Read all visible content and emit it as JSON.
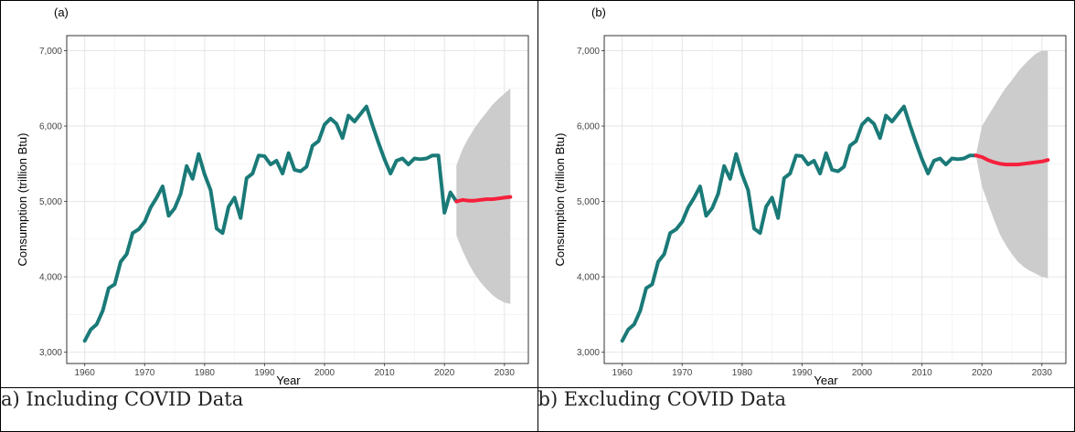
{
  "captions": [
    "a) Including COVID Data",
    "b) Excluding COVID Data"
  ],
  "colors": {
    "history": "#1a7a78",
    "forecast": "#f5203c",
    "band": "#cccccc",
    "grid": "#e6e6e6"
  },
  "chart_data": [
    {
      "type": "line",
      "panel_label": "(a)",
      "xlabel": "Year",
      "ylabel": "Consumption (trillion Btu)",
      "xlim": [
        1957,
        2034
      ],
      "ylim": [
        2850,
        7200
      ],
      "xticks": [
        "1960",
        "1970",
        "1980",
        "1990",
        "2000",
        "2010",
        "2020",
        "2030"
      ],
      "yticks": [
        "3,000",
        "4,000",
        "5,000",
        "6,000",
        "7,000"
      ],
      "grid": true,
      "series": [
        {
          "role": "history",
          "x": [
            1960,
            1961,
            1962,
            1963,
            1964,
            1965,
            1966,
            1967,
            1968,
            1969,
            1970,
            1971,
            1972,
            1973,
            1974,
            1975,
            1976,
            1977,
            1978,
            1979,
            1980,
            1981,
            1982,
            1983,
            1984,
            1985,
            1986,
            1987,
            1988,
            1989,
            1990,
            1991,
            1992,
            1993,
            1994,
            1995,
            1996,
            1997,
            1998,
            1999,
            2000,
            2001,
            2002,
            2003,
            2004,
            2005,
            2006,
            2007,
            2008,
            2009,
            2010,
            2011,
            2012,
            2013,
            2014,
            2015,
            2016,
            2017,
            2018,
            2019,
            2020,
            2021,
            2022
          ],
          "y": [
            3150,
            3300,
            3370,
            3550,
            3850,
            3900,
            4200,
            4300,
            4580,
            4630,
            4730,
            4920,
            5050,
            5200,
            4810,
            4910,
            5100,
            5470,
            5300,
            5630,
            5360,
            5150,
            4640,
            4580,
            4930,
            5050,
            4780,
            5310,
            5370,
            5610,
            5600,
            5490,
            5540,
            5370,
            5640,
            5420,
            5400,
            5460,
            5740,
            5800,
            6020,
            6100,
            6030,
            5840,
            6140,
            6060,
            6160,
            6260,
            6010,
            5780,
            5560,
            5370,
            5540,
            5570,
            5490,
            5570,
            5560,
            5570,
            5610,
            5610,
            4850,
            5120,
            5000
          ]
        },
        {
          "role": "forecast",
          "x": [
            2022,
            2023,
            2024,
            2025,
            2026,
            2027,
            2028,
            2029,
            2030,
            2031
          ],
          "y": [
            5000,
            5020,
            5010,
            5010,
            5020,
            5030,
            5030,
            5040,
            5050,
            5060
          ],
          "lower": [
            4550,
            4350,
            4180,
            4040,
            3930,
            3840,
            3760,
            3700,
            3660,
            3640
          ],
          "upper": [
            5480,
            5690,
            5840,
            5970,
            6080,
            6180,
            6280,
            6360,
            6430,
            6500
          ]
        }
      ]
    },
    {
      "type": "line",
      "panel_label": "(b)",
      "xlabel": "Year",
      "ylabel": "Consumption (trillion Btu)",
      "xlim": [
        1957,
        2034
      ],
      "ylim": [
        2850,
        7200
      ],
      "xticks": [
        "1960",
        "1970",
        "1980",
        "1990",
        "2000",
        "2010",
        "2020",
        "2030"
      ],
      "yticks": [
        "3,000",
        "4,000",
        "5,000",
        "6,000",
        "7,000"
      ],
      "grid": true,
      "series": [
        {
          "role": "history",
          "x": [
            1960,
            1961,
            1962,
            1963,
            1964,
            1965,
            1966,
            1967,
            1968,
            1969,
            1970,
            1971,
            1972,
            1973,
            1974,
            1975,
            1976,
            1977,
            1978,
            1979,
            1980,
            1981,
            1982,
            1983,
            1984,
            1985,
            1986,
            1987,
            1988,
            1989,
            1990,
            1991,
            1992,
            1993,
            1994,
            1995,
            1996,
            1997,
            1998,
            1999,
            2000,
            2001,
            2002,
            2003,
            2004,
            2005,
            2006,
            2007,
            2008,
            2009,
            2010,
            2011,
            2012,
            2013,
            2014,
            2015,
            2016,
            2017,
            2018,
            2019
          ],
          "y": [
            3150,
            3300,
            3370,
            3550,
            3850,
            3900,
            4200,
            4300,
            4580,
            4630,
            4730,
            4920,
            5050,
            5200,
            4810,
            4910,
            5100,
            5470,
            5300,
            5630,
            5360,
            5150,
            4640,
            4580,
            4930,
            5050,
            4780,
            5310,
            5370,
            5610,
            5600,
            5490,
            5540,
            5370,
            5640,
            5420,
            5400,
            5460,
            5740,
            5800,
            6020,
            6100,
            6030,
            5840,
            6140,
            6060,
            6160,
            6260,
            6010,
            5780,
            5560,
            5370,
            5540,
            5570,
            5490,
            5570,
            5560,
            5570,
            5610,
            5610
          ]
        },
        {
          "role": "forecast",
          "x": [
            2019,
            2020,
            2021,
            2022,
            2023,
            2024,
            2025,
            2026,
            2027,
            2028,
            2029,
            2030,
            2031
          ],
          "y": [
            5610,
            5590,
            5550,
            5520,
            5500,
            5490,
            5490,
            5490,
            5500,
            5510,
            5520,
            5530,
            5550
          ],
          "lower": [
            5610,
            5200,
            4980,
            4760,
            4560,
            4420,
            4300,
            4200,
            4130,
            4080,
            4040,
            4000,
            3980
          ],
          "upper": [
            5610,
            6000,
            6130,
            6260,
            6390,
            6510,
            6610,
            6720,
            6810,
            6890,
            6960,
            7000,
            7000
          ]
        }
      ]
    }
  ]
}
